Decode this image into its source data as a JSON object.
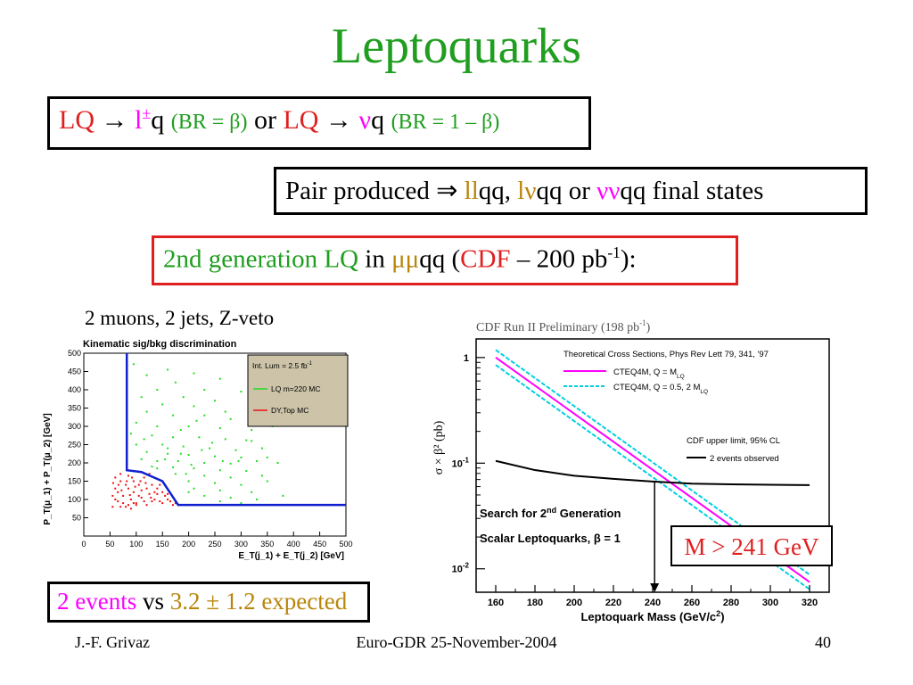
{
  "title": "Leptoquarks",
  "box1": {
    "lq1": "LQ",
    "arrow1": "→",
    "lepton": "l",
    "pm": "±",
    "q1": "q",
    "br1": "(BR = β)",
    "or": "or",
    "lq2": "LQ",
    "arrow2": "→",
    "nu": "ν",
    "q2": "q",
    "br2": "(BR = 1 – β)"
  },
  "box2": {
    "pre": "Pair produced ⇒ ",
    "ll": "ll",
    "qq1": "qq, ",
    "lnu": "lν",
    "qq2": "qq or ",
    "nunu": "νν",
    "post": "qq final states"
  },
  "box3": {
    "gen": "2nd generation LQ",
    "in": " in ",
    "mumu": "μμ",
    "qq": "qq (",
    "cdf": "CDF",
    "lumi": " – 200 pb",
    "exp": "-1",
    "close": "):"
  },
  "left_caption": "2 muons, 2 jets, Z-veto",
  "box4": {
    "events": "2 events",
    "vs": " vs ",
    "expected": "3.2 ± 1.2 expected"
  },
  "mass_limit": "M > 241 GeV",
  "footer": {
    "author": "J.-F. Grivaz",
    "event": "Euro-GDR 25-November-2004",
    "page": "40"
  },
  "colors": {
    "title_green": "#1f9e1f",
    "red": "#e02020",
    "magenta": "#ff00ff",
    "gold": "#b8860b",
    "cyan": "#00d0e0",
    "blue": "#1020d0"
  },
  "chart_data": [
    {
      "type": "scatter",
      "title": "Kinematic sig/bkg discrimination",
      "xlabel": "E_T(j_1) + E_T(j_2) [GeV]",
      "ylabel": "P_T(μ_1) + P_T(μ_2) [GeV]",
      "xlim": [
        0,
        500
      ],
      "ylim": [
        0,
        500
      ],
      "xticks": [
        "0",
        "50",
        "100",
        "150",
        "200",
        "250",
        "300",
        "350",
        "400",
        "450",
        "500"
      ],
      "yticks": [
        "50",
        "100",
        "150",
        "200",
        "250",
        "300",
        "350",
        "400",
        "450",
        "500"
      ],
      "legend": {
        "placement": "top-right",
        "lines": [
          "Int. Lum = 2.5 fb",
          "LQ m=220 MC",
          "DY,Top MC"
        ],
        "lum_exp": "-1"
      },
      "cut_boundary": [
        [
          82,
          500
        ],
        [
          82,
          180
        ],
        [
          110,
          175
        ],
        [
          150,
          150
        ],
        [
          180,
          85
        ],
        [
          500,
          85
        ]
      ],
      "series": [
        {
          "name": "LQ m=220 MC",
          "color": "#22dd22",
          "points": [
            [
              95,
              470
            ],
            [
              120,
              440
            ],
            [
              160,
              455
            ],
            [
              210,
              445
            ],
            [
              260,
              430
            ],
            [
              175,
              420
            ],
            [
              140,
              400
            ],
            [
              230,
              400
            ],
            [
              300,
              395
            ],
            [
              110,
              380
            ],
            [
              190,
              380
            ],
            [
              250,
              370
            ],
            [
              150,
              360
            ],
            [
              210,
              355
            ],
            [
              330,
              355
            ],
            [
              120,
              340
            ],
            [
              170,
              330
            ],
            [
              230,
              330
            ],
            [
              280,
              320
            ],
            [
              100,
              310
            ],
            [
              140,
              300
            ],
            [
              200,
              300
            ],
            [
              260,
              295
            ],
            [
              320,
              290
            ],
            [
              360,
              300
            ],
            [
              90,
              280
            ],
            [
              130,
              275
            ],
            [
              170,
              270
            ],
            [
              220,
              270
            ],
            [
              270,
              265
            ],
            [
              310,
              262
            ],
            [
              100,
              250
            ],
            [
              150,
              250
            ],
            [
              190,
              245
            ],
            [
              240,
              240
            ],
            [
              290,
              235
            ],
            [
              340,
              240
            ],
            [
              120,
              230
            ],
            [
              160,
              225
            ],
            [
              200,
              222
            ],
            [
              250,
              218
            ],
            [
              300,
              215
            ],
            [
              110,
              210
            ],
            [
              140,
              205
            ],
            [
              180,
              205
            ],
            [
              230,
              200
            ],
            [
              280,
              198
            ],
            [
              330,
              205
            ],
            [
              370,
              200
            ],
            [
              130,
              190
            ],
            [
              170,
              188
            ],
            [
              210,
              185
            ],
            [
              260,
              180
            ],
            [
              310,
              178
            ],
            [
              195,
              170
            ],
            [
              230,
              165
            ],
            [
              280,
              160
            ],
            [
              340,
              165
            ],
            [
              200,
              150
            ],
            [
              250,
              145
            ],
            [
              300,
              140
            ],
            [
              350,
              150
            ],
            [
              210,
              130
            ],
            [
              260,
              125
            ],
            [
              320,
              120
            ],
            [
              230,
              110
            ],
            [
              280,
              105
            ],
            [
              330,
              100
            ],
            [
              380,
              110
            ],
            [
              260,
              95
            ],
            [
              300,
              90
            ],
            [
              200,
              120
            ],
            [
              160,
              240
            ],
            [
              115,
              265
            ],
            [
              215,
              315
            ],
            [
              270,
              340
            ],
            [
              185,
              290
            ],
            [
              245,
              255
            ],
            [
              155,
              210
            ],
            [
              320,
              260
            ],
            [
              350,
              215
            ],
            [
              185,
              225
            ],
            [
              140,
              185
            ],
            [
              225,
              235
            ],
            [
              295,
              205
            ],
            [
              265,
              205
            ],
            [
              205,
              195
            ],
            [
              175,
              170
            ]
          ]
        },
        {
          "name": "DY,Top MC",
          "color": "#ee1010",
          "points": [
            [
              55,
              80
            ],
            [
              65,
              95
            ],
            [
              75,
              110
            ],
            [
              85,
              85
            ],
            [
              95,
              120
            ],
            [
              60,
              130
            ],
            [
              70,
              150
            ],
            [
              80,
              140
            ],
            [
              90,
              100
            ],
            [
              100,
              90
            ],
            [
              110,
              105
            ],
            [
              120,
              130
            ],
            [
              130,
              95
            ],
            [
              140,
              115
            ],
            [
              150,
              90
            ],
            [
              160,
              100
            ],
            [
              170,
              85
            ],
            [
              60,
              160
            ],
            [
              70,
              170
            ],
            [
              85,
              165
            ],
            [
              95,
              150
            ],
            [
              105,
              140
            ],
            [
              115,
              160
            ],
            [
              125,
              170
            ],
            [
              135,
              120
            ],
            [
              145,
              140
            ],
            [
              155,
              110
            ],
            [
              165,
              95
            ],
            [
              175,
              90
            ],
            [
              55,
              110
            ],
            [
              65,
              120
            ],
            [
              75,
              90
            ],
            [
              85,
              130
            ],
            [
              95,
              90
            ],
            [
              105,
              110
            ],
            [
              115,
              95
            ],
            [
              125,
              115
            ],
            [
              135,
              100
            ],
            [
              145,
              95
            ],
            [
              80,
              80
            ],
            [
              90,
              75
            ],
            [
              100,
              85
            ],
            [
              110,
              125
            ],
            [
              120,
              85
            ],
            [
              130,
              140
            ],
            [
              60,
              100
            ],
            [
              70,
              80
            ],
            [
              140,
              130
            ],
            [
              150,
              120
            ],
            [
              160,
              115
            ],
            [
              72,
              125
            ],
            [
              88,
              112
            ],
            [
              98,
              135
            ],
            [
              108,
              150
            ],
            [
              118,
              145
            ],
            [
              128,
              105
            ],
            [
              92,
              160
            ],
            [
              82,
              150
            ],
            [
              66,
              140
            ],
            [
              56,
              145
            ]
          ]
        }
      ]
    },
    {
      "type": "line",
      "title": "CDF Run II Preliminary (198 pb",
      "title_exp": "-1",
      "title_close": ")",
      "xlabel": "Leptoquark Mass (GeV/c",
      "xlabel_exp": "2",
      "xlabel_close": ")",
      "ylabel": "σ × β² (pb)",
      "xlim": [
        150,
        330
      ],
      "ylim_log": [
        0.006,
        1.5
      ],
      "xticks": [
        "160",
        "180",
        "200",
        "220",
        "240",
        "260",
        "280",
        "300",
        "320"
      ],
      "yticks": [
        "1",
        "10",
        "10"
      ],
      "ytick_exps": [
        "",
        "-1",
        "-2"
      ],
      "legend": {
        "placement": "top-right",
        "header": "Theoretical Cross Sections, Phys Rev Lett 79, 341, '97",
        "entries": [
          {
            "label": "CTEQ4M, Q = M",
            "sub": "LQ",
            "style": "solid",
            "color": "#ff00ff"
          },
          {
            "label": "CTEQ4M, Q = 0.5, 2 M",
            "sub": "LQ",
            "style": "dashed",
            "color": "#00d0e0"
          }
        ],
        "limit_header": "CDF upper limit, 95% CL",
        "limit_entry": "2 events observed"
      },
      "annotation_line1": "Search for 2",
      "annotation_sup": "nd",
      "annotation_line1_end": " Generation",
      "annotation_line2": "Scalar Leptoquarks,  β = 1",
      "series": [
        {
          "name": "CTEQ4M, Q = M",
          "color": "#ff00ff",
          "x": [
            160,
            320
          ],
          "y": [
            1.0,
            0.0075
          ]
        },
        {
          "name": "CTEQ4M, Q = 0.5, 2 M upper",
          "color": "#00d0e0",
          "x": [
            160,
            320
          ],
          "y": [
            1.18,
            0.0088
          ]
        },
        {
          "name": "CTEQ4M, Q = 0.5, 2 M lower",
          "color": "#00d0e0",
          "x": [
            160,
            320
          ],
          "y": [
            0.85,
            0.0064
          ]
        },
        {
          "name": "2 events observed",
          "color": "#000000",
          "x": [
            160,
            180,
            200,
            220,
            240,
            260,
            280,
            300,
            320
          ],
          "y": [
            0.105,
            0.086,
            0.076,
            0.071,
            0.067,
            0.064,
            0.063,
            0.0625,
            0.062
          ]
        }
      ],
      "limit_mass": 241
    }
  ]
}
